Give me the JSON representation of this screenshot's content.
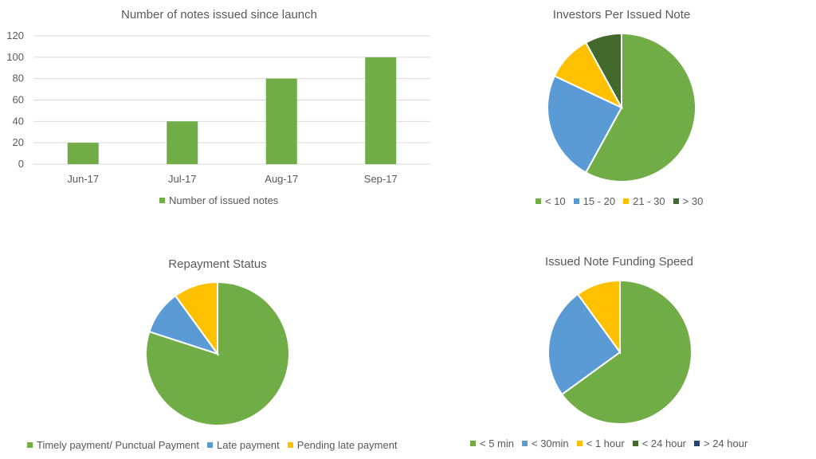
{
  "chart_data": [
    {
      "type": "bar",
      "title": "Number of notes issued since launch",
      "categories": [
        "Jun-17",
        "Jul-17",
        "Aug-17",
        "Sep-17"
      ],
      "series": [
        {
          "name": "Number of issued notes",
          "values": [
            20,
            40,
            80,
            100
          ],
          "color": "#70ad47"
        }
      ],
      "ylim": [
        0,
        120
      ],
      "yticks": [
        0,
        20,
        40,
        60,
        80,
        100,
        120
      ],
      "xlabel": "",
      "ylabel": "",
      "grid": true,
      "legend": "bottom"
    },
    {
      "type": "pie",
      "title": "Investors Per Issued Note",
      "labels": [
        "< 10",
        "15 - 20",
        "21 - 30",
        "> 30"
      ],
      "values": [
        58,
        24,
        10,
        8
      ],
      "colors": [
        "#70ad47",
        "#5b9bd5",
        "#ffc000",
        "#43682b"
      ],
      "legend": "bottom"
    },
    {
      "type": "pie",
      "title": "Repayment Status",
      "labels": [
        "Timely payment/ Punctual Payment",
        "Late payment",
        "Pending late payment"
      ],
      "values": [
        80,
        10,
        10
      ],
      "colors": [
        "#70ad47",
        "#5b9bd5",
        "#ffc000"
      ],
      "legend": "bottom"
    },
    {
      "type": "pie",
      "title": "Issued Note Funding Speed",
      "labels": [
        "< 5 min",
        "< 30min",
        "< 1 hour",
        "< 24 hour",
        "> 24 hour"
      ],
      "values": [
        65,
        25,
        10,
        0,
        0
      ],
      "colors": [
        "#70ad47",
        "#5b9bd5",
        "#ffc000",
        "#43682b",
        "#264478"
      ],
      "legend": "bottom"
    }
  ]
}
